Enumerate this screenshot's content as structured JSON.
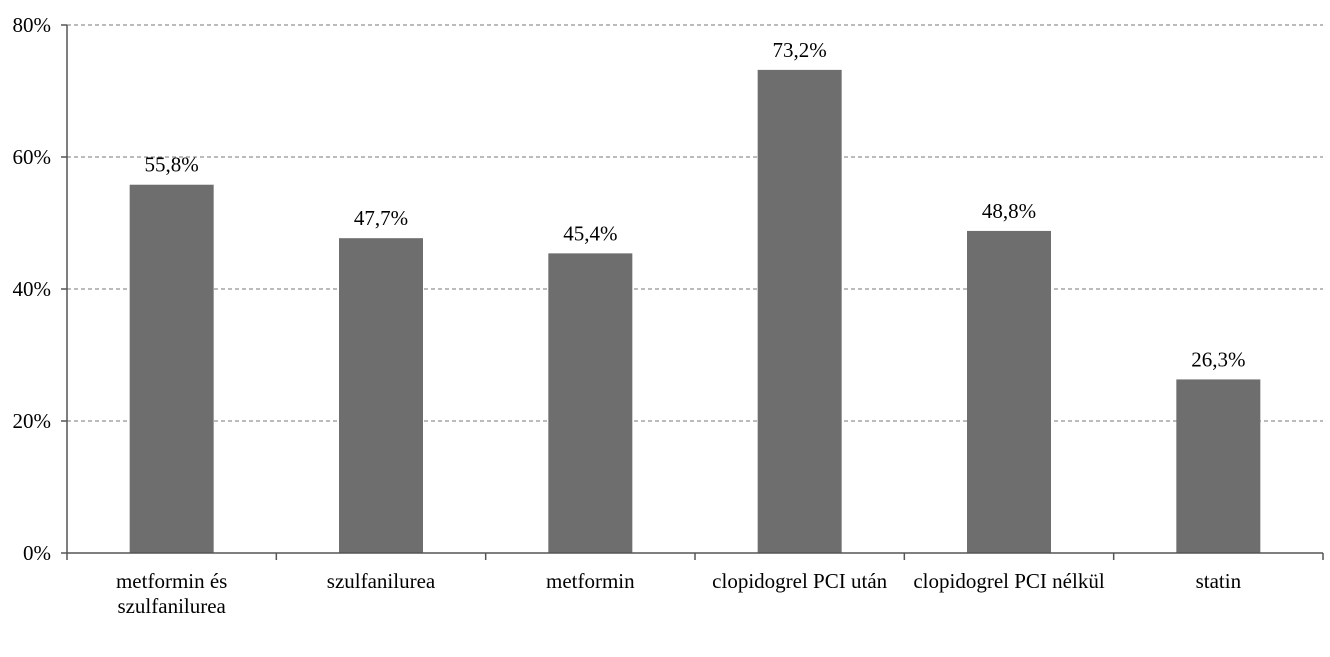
{
  "chart_data": {
    "type": "bar",
    "title": "",
    "xlabel": "",
    "ylabel": "",
    "categories": [
      [
        "metformin és",
        "szulfanilurea"
      ],
      [
        "szulfanilurea"
      ],
      [
        "metformin"
      ],
      [
        "clopidogrel PCI után"
      ],
      [
        "clopidogrel PCI nélkül"
      ],
      [
        "statin"
      ]
    ],
    "values": [
      55.8,
      47.7,
      45.4,
      73.2,
      48.8,
      26.3
    ],
    "value_labels": [
      "55,8%",
      "47,7%",
      "45,4%",
      "73,2%",
      "48,8%",
      "26,3%"
    ],
    "ylim": [
      0,
      80
    ],
    "yticks": [
      0,
      20,
      40,
      60,
      80
    ],
    "ytick_labels": [
      "0%",
      "20%",
      "40%",
      "60%",
      "80%"
    ],
    "grid": true,
    "legend": "none",
    "bar_color": "#6e6e6e"
  }
}
